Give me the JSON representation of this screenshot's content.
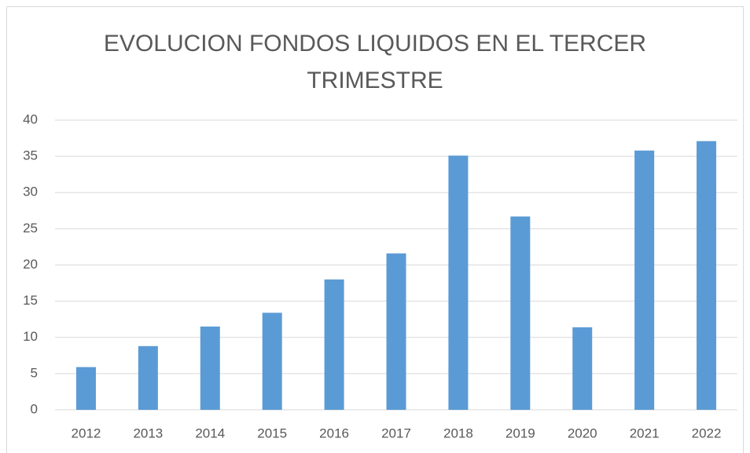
{
  "chart_data": {
    "type": "bar",
    "title": "EVOLUCION FONDOS LIQUIDOS EN EL TERCER TRIMESTRE",
    "categories": [
      "2012",
      "2013",
      "2014",
      "2015",
      "2016",
      "2017",
      "2018",
      "2019",
      "2020",
      "2021",
      "2022"
    ],
    "values": [
      5.9,
      8.8,
      11.5,
      13.4,
      18.0,
      21.6,
      35.1,
      26.7,
      11.4,
      35.8,
      37.1
    ],
    "color": "#5b9bd5",
    "ylim": [
      0,
      40
    ],
    "yticks": [
      0,
      5,
      10,
      15,
      20,
      25,
      30,
      35,
      40
    ],
    "grid": true
  }
}
